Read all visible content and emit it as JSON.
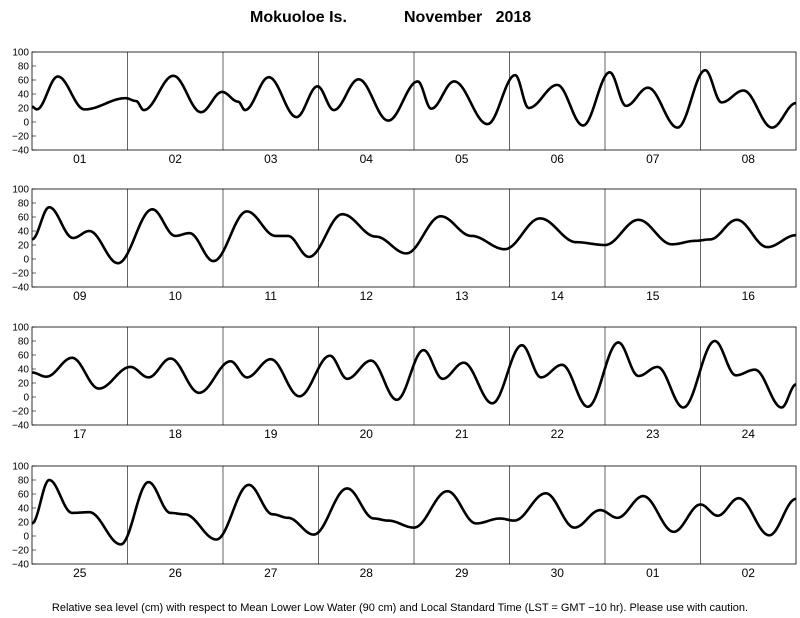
{
  "title": {
    "station": "Mokuoloe Is.",
    "month_year": "November   2018"
  },
  "footer": "Relative sea level (cm) with respect to Mean Lower Low Water (90 cm) and Local Standard Time (LST = GMT −10 hr). Please use with caution.",
  "chart_data": {
    "type": "line",
    "xlabel": "",
    "ylabel": "",
    "ylim": [
      -40,
      100
    ],
    "yticks": [
      100,
      80,
      60,
      40,
      20,
      0,
      -20,
      -40
    ],
    "grid": "vertical day separators",
    "line_color": "#000000",
    "panels": [
      {
        "days": [
          "01",
          "02",
          "03",
          "04",
          "05",
          "06",
          "07",
          "08"
        ],
        "extrema": [
          [
            0,
            22
          ],
          [
            0.05,
            18
          ],
          [
            0.27,
            65
          ],
          [
            0.55,
            18
          ],
          [
            0.98,
            34
          ],
          [
            1.09,
            30
          ],
          [
            1.17,
            17
          ],
          [
            1.48,
            66
          ],
          [
            1.77,
            14
          ],
          [
            1.99,
            43
          ],
          [
            2.16,
            29
          ],
          [
            2.23,
            17
          ],
          [
            2.48,
            64
          ],
          [
            2.77,
            7
          ],
          [
            2.99,
            51
          ],
          [
            3.16,
            17
          ],
          [
            3.42,
            61
          ],
          [
            3.73,
            2
          ],
          [
            4.04,
            58
          ],
          [
            4.18,
            19
          ],
          [
            4.42,
            58
          ],
          [
            4.77,
            -3
          ],
          [
            5.06,
            67
          ],
          [
            5.2,
            20
          ],
          [
            5.5,
            53
          ],
          [
            5.77,
            -5
          ],
          [
            6.05,
            71
          ],
          [
            6.22,
            23
          ],
          [
            6.45,
            49
          ],
          [
            6.76,
            -8
          ],
          [
            7.05,
            74
          ],
          [
            7.22,
            28
          ],
          [
            7.45,
            45
          ],
          [
            7.75,
            -8
          ],
          [
            8,
            27
          ]
        ]
      },
      {
        "days": [
          "09",
          "10",
          "11",
          "12",
          "13",
          "14",
          "15",
          "16"
        ],
        "extrema": [
          [
            0,
            28
          ],
          [
            0.18,
            74
          ],
          [
            0.43,
            30
          ],
          [
            0.6,
            40
          ],
          [
            0.9,
            -6
          ],
          [
            1.26,
            71
          ],
          [
            1.5,
            33
          ],
          [
            1.65,
            37
          ],
          [
            1.9,
            -3
          ],
          [
            2.25,
            68
          ],
          [
            2.55,
            33
          ],
          [
            2.68,
            33
          ],
          [
            2.9,
            3
          ],
          [
            3.25,
            64
          ],
          [
            3.6,
            32
          ],
          [
            3.92,
            8
          ],
          [
            4.28,
            61
          ],
          [
            4.6,
            33
          ],
          [
            4.95,
            14
          ],
          [
            5.32,
            58
          ],
          [
            5.7,
            24
          ],
          [
            6.0,
            20
          ],
          [
            6.35,
            56
          ],
          [
            6.7,
            21
          ],
          [
            6.95,
            26
          ],
          [
            7.1,
            28
          ],
          [
            7.38,
            56
          ],
          [
            7.7,
            17
          ],
          [
            8,
            34
          ]
        ]
      },
      {
        "days": [
          "17",
          "18",
          "19",
          "20",
          "21",
          "22",
          "23",
          "24"
        ],
        "extrema": [
          [
            0,
            35
          ],
          [
            0.15,
            29
          ],
          [
            0.42,
            56
          ],
          [
            0.7,
            12
          ],
          [
            1.03,
            43
          ],
          [
            1.22,
            28
          ],
          [
            1.45,
            55
          ],
          [
            1.75,
            6
          ],
          [
            2.08,
            51
          ],
          [
            2.25,
            28
          ],
          [
            2.5,
            54
          ],
          [
            2.8,
            1
          ],
          [
            3.12,
            59
          ],
          [
            3.3,
            26
          ],
          [
            3.55,
            52
          ],
          [
            3.82,
            -4
          ],
          [
            4.1,
            67
          ],
          [
            4.3,
            26
          ],
          [
            4.52,
            49
          ],
          [
            4.82,
            -9
          ],
          [
            5.13,
            74
          ],
          [
            5.33,
            28
          ],
          [
            5.55,
            46
          ],
          [
            5.82,
            -14
          ],
          [
            6.14,
            78
          ],
          [
            6.35,
            30
          ],
          [
            6.55,
            43
          ],
          [
            6.82,
            -15
          ],
          [
            7.15,
            80
          ],
          [
            7.37,
            31
          ],
          [
            7.57,
            39
          ],
          [
            7.85,
            -15
          ],
          [
            8,
            18
          ]
        ]
      },
      {
        "days": [
          "25",
          "26",
          "27",
          "28",
          "29",
          "30",
          "01",
          "02"
        ],
        "extrema": [
          [
            0,
            18
          ],
          [
            0.18,
            80
          ],
          [
            0.42,
            33
          ],
          [
            0.6,
            34
          ],
          [
            0.93,
            -12
          ],
          [
            1.22,
            77
          ],
          [
            1.45,
            33
          ],
          [
            1.6,
            31
          ],
          [
            1.93,
            -5
          ],
          [
            2.27,
            73
          ],
          [
            2.52,
            31
          ],
          [
            2.68,
            26
          ],
          [
            2.95,
            2
          ],
          [
            3.3,
            68
          ],
          [
            3.58,
            25
          ],
          [
            3.73,
            22
          ],
          [
            4.0,
            12
          ],
          [
            4.35,
            64
          ],
          [
            4.65,
            18
          ],
          [
            4.9,
            25
          ],
          [
            5.05,
            22
          ],
          [
            5.38,
            61
          ],
          [
            5.68,
            12
          ],
          [
            5.95,
            37
          ],
          [
            6.13,
            26
          ],
          [
            6.4,
            57
          ],
          [
            6.72,
            6
          ],
          [
            7.0,
            45
          ],
          [
            7.18,
            29
          ],
          [
            7.4,
            54
          ],
          [
            7.72,
            1
          ],
          [
            8,
            53
          ]
        ]
      }
    ]
  }
}
